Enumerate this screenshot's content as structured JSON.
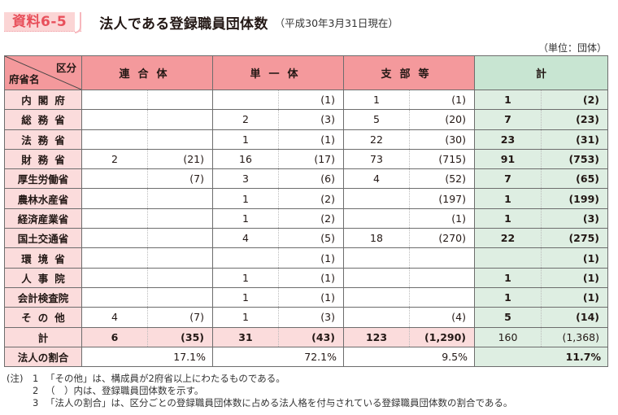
{
  "header": {
    "badge": "資料6-5",
    "title": "法人である登録職員団体数",
    "subtitle": "（平成30年3月31日現在）",
    "unit": "（単位：団体）"
  },
  "table": {
    "corner_top": "区分",
    "corner_bottom": "府省名",
    "columns": [
      "連合体",
      "単一体",
      "支部等",
      "計"
    ],
    "rows": [
      {
        "label": "内閣府",
        "spaced": true,
        "rengo": [
          "",
          ""
        ],
        "tanitsu": [
          "",
          "(1)"
        ],
        "shibu": [
          "1",
          "(1)"
        ],
        "total": [
          "1",
          "(2)"
        ]
      },
      {
        "label": "総務省",
        "spaced": true,
        "rengo": [
          "",
          ""
        ],
        "tanitsu": [
          "2",
          "(3)"
        ],
        "shibu": [
          "5",
          "(20)"
        ],
        "total": [
          "7",
          "(23)"
        ]
      },
      {
        "label": "法務省",
        "spaced": true,
        "rengo": [
          "",
          ""
        ],
        "tanitsu": [
          "1",
          "(1)"
        ],
        "shibu": [
          "22",
          "(30)"
        ],
        "total": [
          "23",
          "(31)"
        ]
      },
      {
        "label": "財務省",
        "spaced": true,
        "rengo": [
          "2",
          "(21)"
        ],
        "tanitsu": [
          "16",
          "(17)"
        ],
        "shibu": [
          "73",
          "(715)"
        ],
        "total": [
          "91",
          "(753)"
        ]
      },
      {
        "label": "厚生労働省",
        "spaced": false,
        "rengo": [
          "",
          "(7)"
        ],
        "tanitsu": [
          "3",
          "(6)"
        ],
        "shibu": [
          "4",
          "(52)"
        ],
        "total": [
          "7",
          "(65)"
        ]
      },
      {
        "label": "農林水産省",
        "spaced": false,
        "rengo": [
          "",
          ""
        ],
        "tanitsu": [
          "1",
          "(2)"
        ],
        "shibu": [
          "",
          "(197)"
        ],
        "total": [
          "1",
          "(199)"
        ]
      },
      {
        "label": "経済産業省",
        "spaced": false,
        "rengo": [
          "",
          ""
        ],
        "tanitsu": [
          "1",
          "(2)"
        ],
        "shibu": [
          "",
          "(1)"
        ],
        "total": [
          "1",
          "(3)"
        ]
      },
      {
        "label": "国土交通省",
        "spaced": false,
        "rengo": [
          "",
          ""
        ],
        "tanitsu": [
          "4",
          "(5)"
        ],
        "shibu": [
          "18",
          "(270)"
        ],
        "total": [
          "22",
          "(275)"
        ]
      },
      {
        "label": "環境省",
        "spaced": true,
        "rengo": [
          "",
          ""
        ],
        "tanitsu": [
          "",
          "(1)"
        ],
        "shibu": [
          "",
          ""
        ],
        "total": [
          "",
          "(1)"
        ]
      },
      {
        "label": "人事院",
        "spaced": true,
        "rengo": [
          "",
          ""
        ],
        "tanitsu": [
          "1",
          "(1)"
        ],
        "shibu": [
          "",
          ""
        ],
        "total": [
          "1",
          "(1)"
        ]
      },
      {
        "label": "会計検査院",
        "spaced": false,
        "rengo": [
          "",
          ""
        ],
        "tanitsu": [
          "1",
          "(1)"
        ],
        "shibu": [
          "",
          ""
        ],
        "total": [
          "1",
          "(1)"
        ]
      },
      {
        "label": "その他",
        "spaced": true,
        "rengo": [
          "4",
          "(7)"
        ],
        "tanitsu": [
          "1",
          "(3)"
        ],
        "shibu": [
          "",
          "(4)"
        ],
        "total": [
          "5",
          "(14)"
        ]
      }
    ],
    "sum_row": {
      "label": "計",
      "rengo": [
        "6",
        "(35)"
      ],
      "tanitsu": [
        "31",
        "(43)"
      ],
      "shibu": [
        "123",
        "(1,290)"
      ],
      "total": [
        "160",
        "(1,368)"
      ]
    },
    "ratio_row": {
      "label": "法人の割合",
      "rengo": "17.1%",
      "tanitsu": "72.1%",
      "shibu": "9.5%",
      "total": "11.7%"
    }
  },
  "notes": {
    "label": "(注)",
    "items": [
      {
        "n": "1",
        "text": "「その他」は、構成員が2府省以上にわたるものである。"
      },
      {
        "n": "2",
        "text": "（　）内は、登録職員団体数を示す。"
      },
      {
        "n": "3",
        "text": "「法人の割合」は、区分ごとの登録職員団体数に占める法人格を付与されている登録職員団体数の割合である。"
      }
    ]
  },
  "colors": {
    "header_pink": "#f4999c",
    "row_label_pink": "#fbdcdc",
    "total_green_header": "#c8e5d2",
    "total_green_cell": "#deeee2",
    "badge_text": "#e8505b"
  }
}
